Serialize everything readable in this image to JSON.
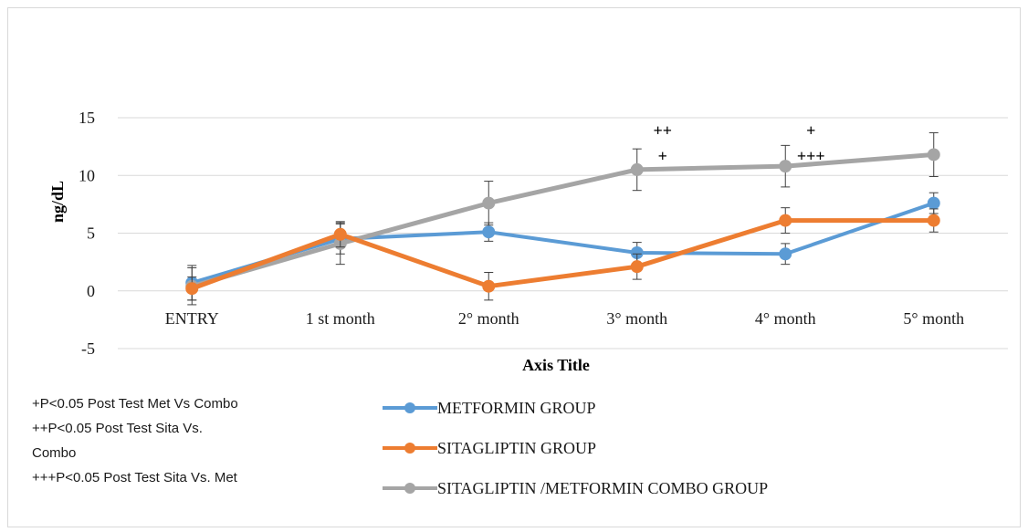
{
  "chart_data": {
    "type": "line",
    "categories": [
      "ENTRY",
      "1 st month",
      "2° month",
      "3° month",
      "4° month",
      "5° month"
    ],
    "ylabel": "ng/dL",
    "xlabel": "Axis Title",
    "ylim": [
      -5,
      15
    ],
    "yticks": [
      -5,
      0,
      5,
      10,
      15
    ],
    "grid": true,
    "series": [
      {
        "name": "METFORMIN GROUP",
        "color": "#5b9bd5",
        "values": [
          0.7,
          4.5,
          5.1,
          3.3,
          3.2,
          7.6
        ],
        "errors": [
          1.5,
          1.3,
          0.8,
          0.9,
          0.9,
          0.9
        ]
      },
      {
        "name": "SITAGLIPTIN GROUP",
        "color": "#ed7d31",
        "values": [
          0.2,
          4.9,
          0.4,
          2.1,
          6.1,
          6.1
        ],
        "errors": [
          1.0,
          1.1,
          1.2,
          1.1,
          1.1,
          1.0
        ]
      },
      {
        "name": "SITAGLIPTIN /METFORMIN COMBO GROUP",
        "color": "#a5a5a5",
        "values": [
          0.4,
          4.1,
          7.6,
          10.5,
          10.8,
          11.8
        ],
        "errors": [
          1.6,
          1.8,
          1.9,
          1.8,
          1.8,
          1.9
        ]
      }
    ],
    "annotations": [
      {
        "category_index": 3,
        "lines": [
          "++",
          "+"
        ]
      },
      {
        "category_index": 4,
        "lines": [
          "+",
          "+++"
        ]
      }
    ]
  },
  "notes": [
    "+P<0.05 Post Test  Met Vs Combo",
    "++P<0.05 Post Test Sita Vs.",
    "Combo",
    "+++P<0.05 Post Test Sita Vs. Met"
  ]
}
